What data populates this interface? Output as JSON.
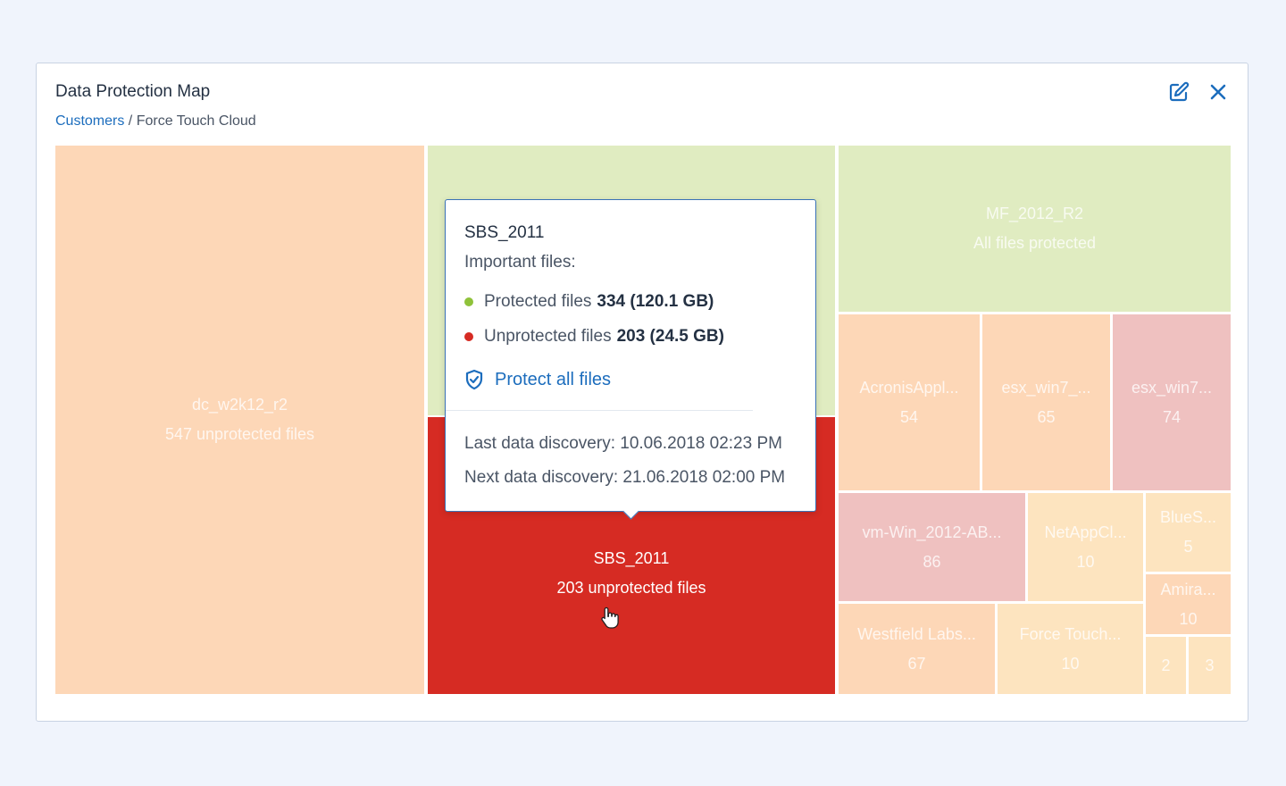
{
  "header": {
    "title": "Data Protection Map",
    "breadcrumb_root": "Customers",
    "breadcrumb_separator": " / ",
    "breadcrumb_current": "Force Touch Cloud",
    "edit_icon": "edit-icon",
    "close_icon": "close-icon"
  },
  "colors": {
    "unprotected_high": "#d62b23",
    "unprotected_medium": "#efc1c0",
    "unprotected_low": "#fdd7b7",
    "unprotected_minimal": "#fde4bf",
    "protected": "#e0ecc1",
    "protected_dot": "#8fc23a",
    "unprotected_dot": "#d62b23",
    "link": "#1c6dbd"
  },
  "tiles": [
    {
      "name": "dc_w2k12_r2",
      "value": "547 unprotected files"
    },
    {
      "name": "",
      "value": ""
    },
    {
      "name": "SBS_2011",
      "value": "203 unprotected files"
    },
    {
      "name": "MF_2012_R2",
      "value": "All files protected"
    },
    {
      "name": "AcronisAppl...",
      "value": "54"
    },
    {
      "name": "esx_win7_...",
      "value": "65"
    },
    {
      "name": "esx_win7...",
      "value": "74"
    },
    {
      "name": "vm-Win_2012-AB...",
      "value": "86"
    },
    {
      "name": "NetAppCl...",
      "value": "10"
    },
    {
      "name": "BlueS...",
      "value": "5"
    },
    {
      "name": "Amira...",
      "value": "10"
    },
    {
      "name": "Westfield Labs...",
      "value": "67"
    },
    {
      "name": "Force Touch...",
      "value": "10"
    },
    {
      "name": "",
      "value": "2"
    },
    {
      "name": "",
      "value": "3"
    }
  ],
  "tooltip": {
    "title": "SBS_2011",
    "subtitle": "Important files:",
    "protected_label": "Protected files",
    "protected_value": "334 (120.1 GB)",
    "unprotected_label": "Unprotected files",
    "unprotected_value": "203 (24.5 GB)",
    "action_label": "Protect all files",
    "action_icon": "shield-check-icon",
    "last_discovery": "Last data discovery: 10.06.2018 02:23 PM",
    "next_discovery": "Next data discovery: 21.06.2018 02:00 PM"
  },
  "cursor_icon": "hand-pointer-icon"
}
